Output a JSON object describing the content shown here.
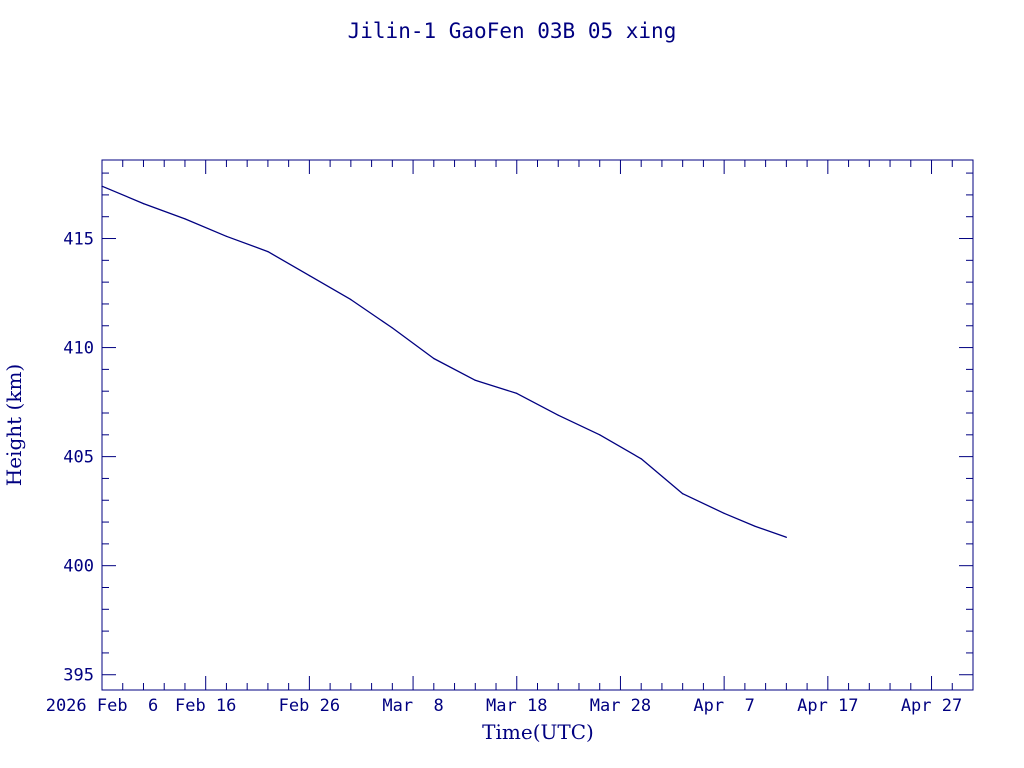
{
  "chart_data": {
    "type": "line",
    "title": "Jilin-1 GaoFen 03B 05 xing",
    "xlabel": "Time(UTC)",
    "ylabel": "Height (km)",
    "x_ticks": [
      {
        "date": "2026-02-06",
        "label": "2026 Feb  6"
      },
      {
        "date": "2026-02-16",
        "label": "Feb 16"
      },
      {
        "date": "2026-02-26",
        "label": "Feb 26"
      },
      {
        "date": "2026-03-08",
        "label": "Mar  8"
      },
      {
        "date": "2026-03-18",
        "label": "Mar 18"
      },
      {
        "date": "2026-03-28",
        "label": "Mar 28"
      },
      {
        "date": "2026-04-07",
        "label": "Apr  7"
      },
      {
        "date": "2026-04-17",
        "label": "Apr 17"
      },
      {
        "date": "2026-04-27",
        "label": "Apr 27"
      }
    ],
    "xlim": [
      "2026-02-06",
      "2026-05-01"
    ],
    "ylim": [
      394.3,
      418.6
    ],
    "y_ticks": [
      395,
      400,
      405,
      410,
      415
    ],
    "y_minor_step": 1,
    "x_minor_step_days": 2,
    "grid": false,
    "color": "#000080",
    "series": [
      {
        "points": [
          [
            "2026-02-06",
            417.4
          ],
          [
            "2026-02-10",
            416.6
          ],
          [
            "2026-02-14",
            415.9
          ],
          [
            "2026-02-18",
            415.1
          ],
          [
            "2026-02-22",
            414.4
          ],
          [
            "2026-02-26",
            413.3
          ],
          [
            "2026-03-02",
            412.2
          ],
          [
            "2026-03-06",
            410.9
          ],
          [
            "2026-03-10",
            409.5
          ],
          [
            "2026-03-14",
            408.5
          ],
          [
            "2026-03-18",
            407.9
          ],
          [
            "2026-03-22",
            406.9
          ],
          [
            "2026-03-26",
            406.0
          ],
          [
            "2026-03-30",
            404.9
          ],
          [
            "2026-04-03",
            403.3
          ],
          [
            "2026-04-07",
            402.4
          ],
          [
            "2026-04-10",
            401.8
          ],
          [
            "2026-04-13",
            401.3
          ]
        ]
      }
    ]
  }
}
